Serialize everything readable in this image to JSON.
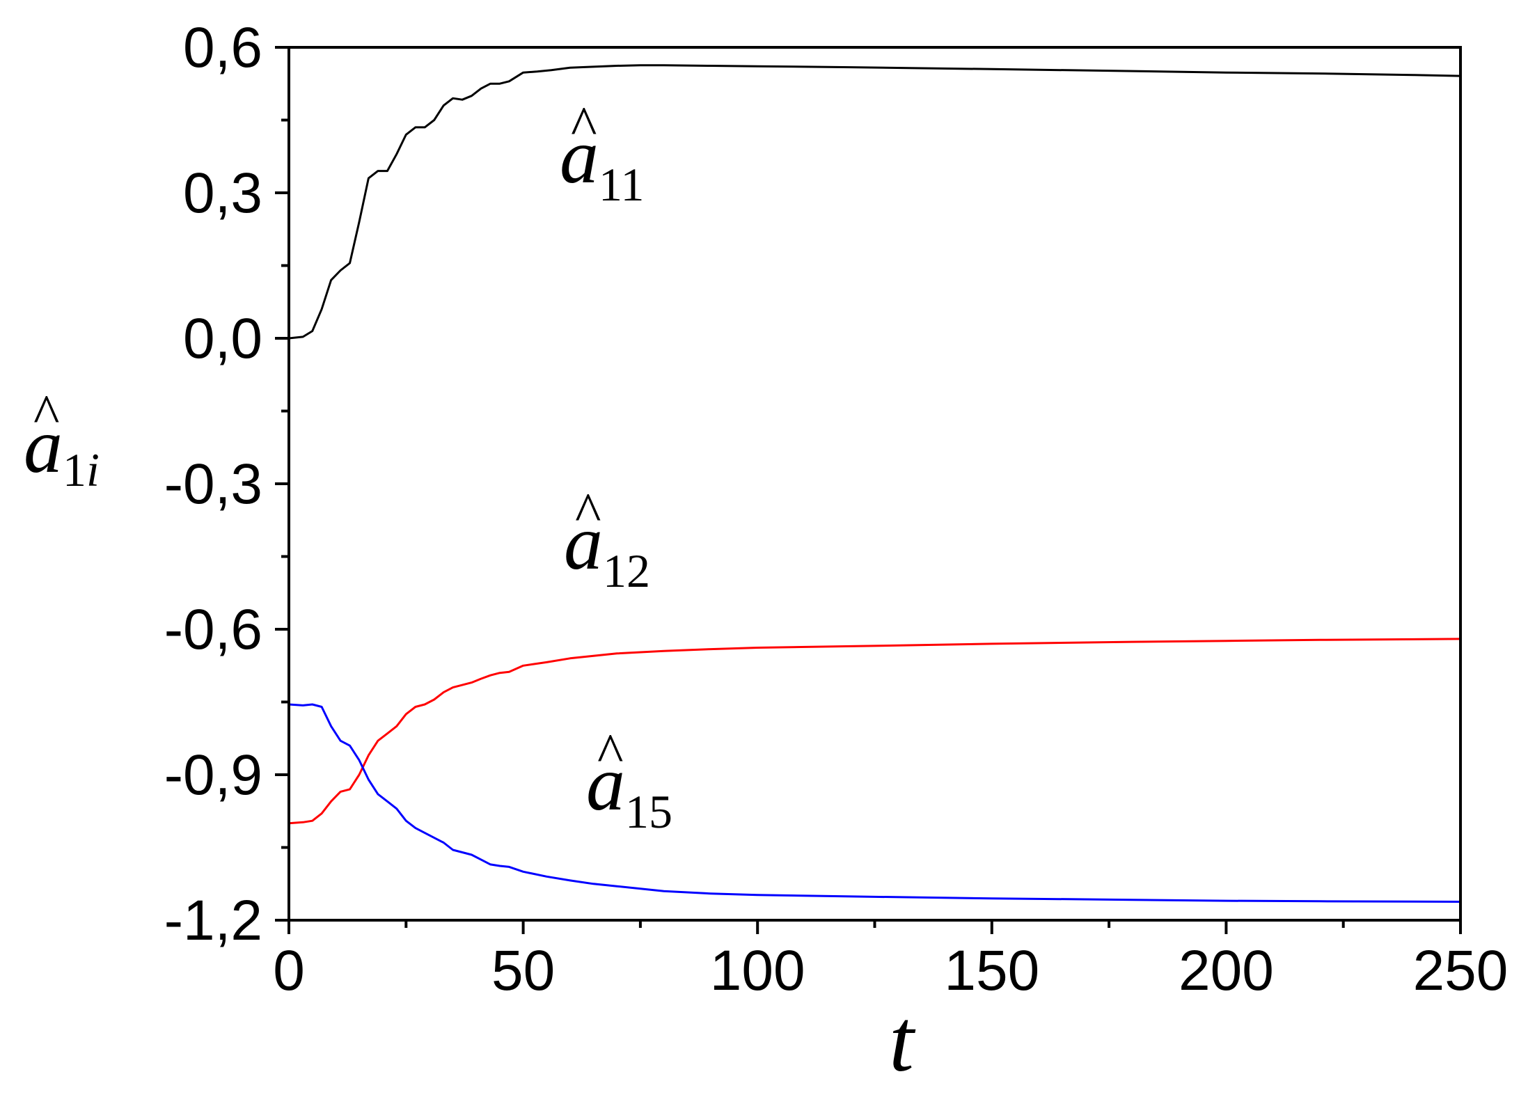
{
  "chart_data": {
    "type": "line",
    "title": "",
    "xlabel": "t",
    "ylabel": {
      "base": "a",
      "hat": "^",
      "subscript": "1",
      "subscript_var": "i"
    },
    "xlim": [
      0,
      250
    ],
    "ylim": [
      -1.2,
      0.6
    ],
    "x_ticks": [
      0,
      50,
      100,
      150,
      200,
      250
    ],
    "x_tick_labels": [
      "0",
      "50",
      "100",
      "150",
      "200",
      "250"
    ],
    "y_ticks": [
      0.6,
      0.3,
      0.0,
      -0.3,
      -0.6,
      -0.9,
      -1.2
    ],
    "y_tick_labels": [
      "0,6",
      "0,3",
      "0,0",
      "-0,3",
      "-0,6",
      "-0,9",
      "-1,2"
    ],
    "x_minor_step": 25,
    "y_minor_step": 0.15,
    "grid": false,
    "series": [
      {
        "name": "â11",
        "label": {
          "base": "a",
          "hat": "^",
          "subscript": "11"
        },
        "color": "#000000",
        "x": [
          0,
          3,
          5,
          7,
          9,
          11,
          13,
          15,
          17,
          19,
          21,
          23,
          25,
          27,
          29,
          31,
          33,
          35,
          37,
          39,
          41,
          43,
          45,
          47,
          50,
          53,
          56,
          60,
          65,
          70,
          75,
          80,
          90,
          100,
          120,
          150,
          180,
          200,
          220,
          240,
          250
        ],
        "y": [
          0.0,
          0.003,
          0.015,
          0.06,
          0.12,
          0.14,
          0.155,
          0.24,
          0.33,
          0.345,
          0.345,
          0.38,
          0.42,
          0.435,
          0.435,
          0.45,
          0.48,
          0.495,
          0.492,
          0.5,
          0.515,
          0.525,
          0.525,
          0.53,
          0.548,
          0.55,
          0.553,
          0.558,
          0.56,
          0.562,
          0.563,
          0.563,
          0.562,
          0.561,
          0.559,
          0.555,
          0.551,
          0.548,
          0.546,
          0.543,
          0.541
        ]
      },
      {
        "name": "â12",
        "label": {
          "base": "a",
          "hat": "^",
          "subscript": "12"
        },
        "color": "#ff0000",
        "x": [
          0,
          3,
          5,
          7,
          9,
          11,
          13,
          15,
          17,
          19,
          21,
          23,
          25,
          27,
          29,
          31,
          33,
          35,
          37,
          39,
          41,
          43,
          45,
          47,
          50,
          55,
          60,
          65,
          70,
          80,
          90,
          100,
          120,
          150,
          180,
          200,
          220,
          250
        ],
        "y": [
          -1.0,
          -0.998,
          -0.995,
          -0.98,
          -0.955,
          -0.935,
          -0.93,
          -0.9,
          -0.86,
          -0.83,
          -0.815,
          -0.8,
          -0.775,
          -0.76,
          -0.755,
          -0.745,
          -0.73,
          -0.72,
          -0.715,
          -0.71,
          -0.702,
          -0.695,
          -0.69,
          -0.688,
          -0.675,
          -0.668,
          -0.66,
          -0.655,
          -0.65,
          -0.645,
          -0.641,
          -0.638,
          -0.635,
          -0.63,
          -0.626,
          -0.624,
          -0.622,
          -0.62
        ]
      },
      {
        "name": "â15",
        "label": {
          "base": "a",
          "hat": "^",
          "subscript": "15"
        },
        "color": "#0000ff",
        "x": [
          0,
          3,
          5,
          7,
          9,
          11,
          13,
          15,
          17,
          19,
          21,
          23,
          25,
          27,
          29,
          31,
          33,
          35,
          37,
          39,
          41,
          43,
          45,
          47,
          50,
          55,
          60,
          65,
          70,
          80,
          90,
          100,
          120,
          150,
          180,
          200,
          220,
          250
        ],
        "y": [
          -0.755,
          -0.757,
          -0.755,
          -0.76,
          -0.8,
          -0.83,
          -0.84,
          -0.87,
          -0.91,
          -0.94,
          -0.955,
          -0.97,
          -0.995,
          -1.01,
          -1.02,
          -1.03,
          -1.04,
          -1.055,
          -1.06,
          -1.065,
          -1.075,
          -1.085,
          -1.088,
          -1.09,
          -1.1,
          -1.11,
          -1.118,
          -1.125,
          -1.13,
          -1.14,
          -1.145,
          -1.148,
          -1.151,
          -1.155,
          -1.158,
          -1.16,
          -1.161,
          -1.162
        ]
      }
    ]
  }
}
